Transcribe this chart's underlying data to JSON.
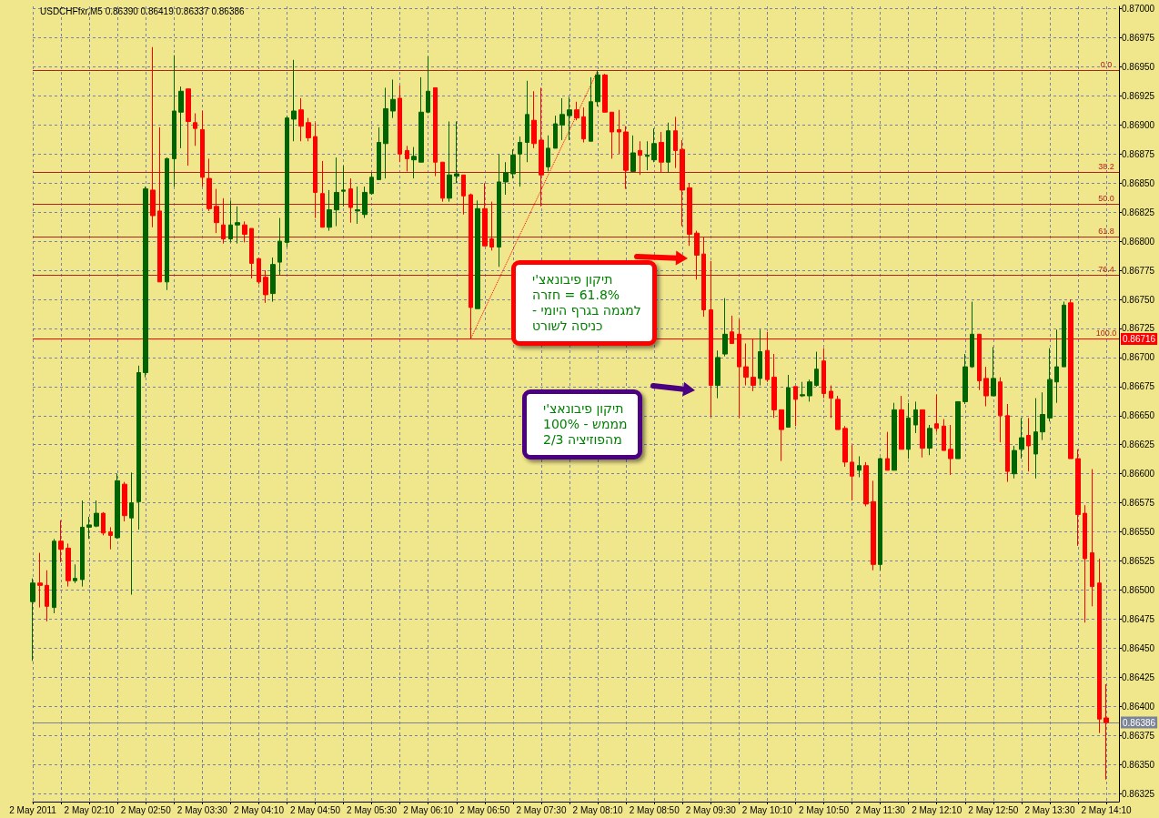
{
  "chart_data": {
    "type": "candlestick",
    "title": "USDCHFfxr,M5 0.86390 0.86419 0.86337 0.86386",
    "x": [
      "2011-05-02T01:30",
      "2011-05-02T01:35",
      "2011-05-02T01:40",
      "2011-05-02T01:45",
      "2011-05-02T01:50",
      "2011-05-02T01:55",
      "2011-05-02T02:00",
      "2011-05-02T02:05",
      "2011-05-02T02:10",
      "2011-05-02T02:15",
      "2011-05-02T02:20",
      "2011-05-02T02:25",
      "2011-05-02T02:30",
      "2011-05-02T02:35",
      "2011-05-02T02:40",
      "2011-05-02T02:45",
      "2011-05-02T02:50",
      "2011-05-02T02:55",
      "2011-05-02T03:00",
      "2011-05-02T03:05",
      "2011-05-02T03:10",
      "2011-05-02T03:15",
      "2011-05-02T03:20",
      "2011-05-02T03:25",
      "2011-05-02T03:30",
      "2011-05-02T03:35",
      "2011-05-02T03:40",
      "2011-05-02T03:45",
      "2011-05-02T03:50",
      "2011-05-02T03:55",
      "2011-05-02T04:00",
      "2011-05-02T04:05",
      "2011-05-02T04:10",
      "2011-05-02T04:15",
      "2011-05-02T04:20",
      "2011-05-02T04:25",
      "2011-05-02T04:30",
      "2011-05-02T04:35",
      "2011-05-02T04:40",
      "2011-05-02T04:45",
      "2011-05-02T04:50",
      "2011-05-02T04:55",
      "2011-05-02T05:00",
      "2011-05-02T05:05",
      "2011-05-02T05:10",
      "2011-05-02T05:15",
      "2011-05-02T05:20",
      "2011-05-02T05:25",
      "2011-05-02T05:30",
      "2011-05-02T05:35",
      "2011-05-02T05:40",
      "2011-05-02T05:45",
      "2011-05-02T05:50",
      "2011-05-02T05:55",
      "2011-05-02T06:00",
      "2011-05-02T06:05",
      "2011-05-02T06:10",
      "2011-05-02T06:15",
      "2011-05-02T06:20",
      "2011-05-02T06:25",
      "2011-05-02T06:30",
      "2011-05-02T06:35",
      "2011-05-02T06:40",
      "2011-05-02T06:45",
      "2011-05-02T06:50",
      "2011-05-02T06:55",
      "2011-05-02T07:00",
      "2011-05-02T07:05",
      "2011-05-02T07:10",
      "2011-05-02T07:15",
      "2011-05-02T07:20",
      "2011-05-02T07:25",
      "2011-05-02T07:30",
      "2011-05-02T07:35",
      "2011-05-02T07:40",
      "2011-05-02T07:45",
      "2011-05-02T07:50",
      "2011-05-02T07:55",
      "2011-05-02T08:00",
      "2011-05-02T08:05",
      "2011-05-02T08:10",
      "2011-05-02T08:15",
      "2011-05-02T08:20",
      "2011-05-02T08:25",
      "2011-05-02T08:30",
      "2011-05-02T08:35",
      "2011-05-02T08:40",
      "2011-05-02T08:45",
      "2011-05-02T08:50",
      "2011-05-02T08:55",
      "2011-05-02T09:00",
      "2011-05-02T09:05",
      "2011-05-02T09:10",
      "2011-05-02T09:15",
      "2011-05-02T09:20",
      "2011-05-02T09:25",
      "2011-05-02T09:30",
      "2011-05-02T09:35",
      "2011-05-02T09:40",
      "2011-05-02T09:45",
      "2011-05-02T09:50",
      "2011-05-02T09:55",
      "2011-05-02T10:00",
      "2011-05-02T10:05",
      "2011-05-02T10:10",
      "2011-05-02T10:15",
      "2011-05-02T10:20",
      "2011-05-02T10:25",
      "2011-05-02T10:30",
      "2011-05-02T10:35",
      "2011-05-02T10:40",
      "2011-05-02T10:45",
      "2011-05-02T10:50",
      "2011-05-02T10:55",
      "2011-05-02T11:00",
      "2011-05-02T11:05",
      "2011-05-02T11:10",
      "2011-05-02T11:15",
      "2011-05-02T11:20",
      "2011-05-02T11:25",
      "2011-05-02T11:30",
      "2011-05-02T11:35",
      "2011-05-02T11:40",
      "2011-05-02T11:45",
      "2011-05-02T11:50",
      "2011-05-02T11:55",
      "2011-05-02T12:00",
      "2011-05-02T12:05",
      "2011-05-02T12:10",
      "2011-05-02T12:15",
      "2011-05-02T12:20",
      "2011-05-02T12:25",
      "2011-05-02T12:30",
      "2011-05-02T12:35",
      "2011-05-02T12:40",
      "2011-05-02T12:45",
      "2011-05-02T12:50",
      "2011-05-02T12:55",
      "2011-05-02T13:00",
      "2011-05-02T13:05",
      "2011-05-02T13:10",
      "2011-05-02T13:15",
      "2011-05-02T13:20",
      "2011-05-02T13:25",
      "2011-05-02T13:30",
      "2011-05-02T13:35",
      "2011-05-02T13:40",
      "2011-05-02T13:45",
      "2011-05-02T13:50",
      "2011-05-02T13:55",
      "2011-05-02T14:00",
      "2011-05-02T14:05",
      "2011-05-02T14:10"
    ],
    "ohlc": [
      [
        0.8649,
        0.8651,
        0.86439,
        0.86506
      ],
      [
        0.86506,
        0.86532,
        0.86485,
        0.86504
      ],
      [
        0.86504,
        0.86517,
        0.86473,
        0.86486
      ],
      [
        0.86485,
        0.86544,
        0.8648,
        0.86542
      ],
      [
        0.86542,
        0.8656,
        0.86524,
        0.86535
      ],
      [
        0.86536,
        0.8654,
        0.86503,
        0.86508
      ],
      [
        0.86508,
        0.86522,
        0.86506,
        0.8651
      ],
      [
        0.86509,
        0.86577,
        0.86503,
        0.86554
      ],
      [
        0.86554,
        0.86563,
        0.86544,
        0.86556
      ],
      [
        0.86555,
        0.86577,
        0.86554,
        0.86566
      ],
      [
        0.86566,
        0.86567,
        0.86547,
        0.86549
      ],
      [
        0.8655,
        0.86554,
        0.86535,
        0.86547
      ],
      [
        0.86545,
        0.866,
        0.86544,
        0.86594
      ],
      [
        0.86591,
        0.86593,
        0.86559,
        0.86564
      ],
      [
        0.86562,
        0.86601,
        0.86496,
        0.86575
      ],
      [
        0.86576,
        0.86693,
        0.86552,
        0.86687
      ],
      [
        0.86687,
        0.86847,
        0.86683,
        0.86845
      ],
      [
        0.86844,
        0.86967,
        0.86812,
        0.86822
      ],
      [
        0.86826,
        0.86898,
        0.86765,
        0.86765
      ],
      [
        0.86765,
        0.86872,
        0.86758,
        0.86871
      ],
      [
        0.86871,
        0.8696,
        0.86847,
        0.86912
      ],
      [
        0.86911,
        0.86933,
        0.8688,
        0.86929
      ],
      [
        0.86931,
        0.86931,
        0.86865,
        0.86903
      ],
      [
        0.86902,
        0.8691,
        0.86882,
        0.86897
      ],
      [
        0.86896,
        0.86912,
        0.86847,
        0.86855
      ],
      [
        0.86854,
        0.86871,
        0.86826,
        0.86828
      ],
      [
        0.8683,
        0.86845,
        0.86807,
        0.86816
      ],
      [
        0.86814,
        0.86837,
        0.86798,
        0.86802
      ],
      [
        0.86802,
        0.86835,
        0.86799,
        0.86814
      ],
      [
        0.86814,
        0.8683,
        0.86798,
        0.86816
      ],
      [
        0.86814,
        0.86817,
        0.86799,
        0.86806
      ],
      [
        0.86811,
        0.86811,
        0.86768,
        0.86781
      ],
      [
        0.86785,
        0.86786,
        0.86763,
        0.86765
      ],
      [
        0.86769,
        0.86775,
        0.86747,
        0.86754
      ],
      [
        0.86755,
        0.86786,
        0.86748,
        0.8678
      ],
      [
        0.86782,
        0.8682,
        0.86771,
        0.868
      ],
      [
        0.86799,
        0.86908,
        0.86795,
        0.86906
      ],
      [
        0.86905,
        0.86956,
        0.86886,
        0.86912
      ],
      [
        0.86913,
        0.86923,
        0.86886,
        0.86899
      ],
      [
        0.86902,
        0.86906,
        0.86886,
        0.86889
      ],
      [
        0.8689,
        0.86902,
        0.8682,
        0.86842
      ],
      [
        0.86841,
        0.86869,
        0.86812,
        0.86812
      ],
      [
        0.86812,
        0.86844,
        0.86809,
        0.86827
      ],
      [
        0.86827,
        0.86872,
        0.86813,
        0.86842
      ],
      [
        0.86843,
        0.86865,
        0.8683,
        0.86844
      ],
      [
        0.86845,
        0.86854,
        0.86816,
        0.86829
      ],
      [
        0.86826,
        0.86847,
        0.86815,
        0.86827
      ],
      [
        0.86823,
        0.86847,
        0.8682,
        0.86842
      ],
      [
        0.86841,
        0.86859,
        0.8684,
        0.86855
      ],
      [
        0.86853,
        0.86898,
        0.86853,
        0.86885
      ],
      [
        0.86884,
        0.86932,
        0.86854,
        0.86914
      ],
      [
        0.86912,
        0.86939,
        0.86906,
        0.86922
      ],
      [
        0.86923,
        0.86934,
        0.86868,
        0.86875
      ],
      [
        0.86878,
        0.86882,
        0.8686,
        0.86871
      ],
      [
        0.8687,
        0.86881,
        0.86854,
        0.86873
      ],
      [
        0.86868,
        0.86941,
        0.86868,
        0.86911
      ],
      [
        0.86911,
        0.86959,
        0.8691,
        0.86929
      ],
      [
        0.86932,
        0.86932,
        0.86856,
        0.86868
      ],
      [
        0.86868,
        0.86868,
        0.86834,
        0.86837
      ],
      [
        0.86837,
        0.86903,
        0.86834,
        0.86857
      ],
      [
        0.86856,
        0.86903,
        0.8685,
        0.86858
      ],
      [
        0.86857,
        0.86857,
        0.86823,
        0.86839
      ],
      [
        0.8684,
        0.86841,
        0.86716,
        0.86743
      ],
      [
        0.86742,
        0.86835,
        0.86742,
        0.86828
      ],
      [
        0.86828,
        0.8685,
        0.86796,
        0.86796
      ],
      [
        0.86802,
        0.86834,
        0.86792,
        0.86795
      ],
      [
        0.86795,
        0.86875,
        0.86778,
        0.86851
      ],
      [
        0.86851,
        0.86868,
        0.8684,
        0.86859
      ],
      [
        0.86858,
        0.86879,
        0.86854,
        0.86874
      ],
      [
        0.86875,
        0.8689,
        0.86847,
        0.86885
      ],
      [
        0.86885,
        0.86938,
        0.86868,
        0.86909
      ],
      [
        0.86904,
        0.86929,
        0.8688,
        0.86884
      ],
      [
        0.86887,
        0.86932,
        0.8683,
        0.86857
      ],
      [
        0.86864,
        0.86891,
        0.8686,
        0.8688
      ],
      [
        0.8688,
        0.86908,
        0.8688,
        0.86901
      ],
      [
        0.869,
        0.86923,
        0.86887,
        0.86909
      ],
      [
        0.86908,
        0.86924,
        0.86887,
        0.86913
      ],
      [
        0.86913,
        0.8692,
        0.86904,
        0.86906
      ],
      [
        0.86907,
        0.86915,
        0.86885,
        0.86888
      ],
      [
        0.86886,
        0.86941,
        0.86886,
        0.8692
      ],
      [
        0.8692,
        0.86947,
        0.86916,
        0.86943
      ],
      [
        0.86943,
        0.86944,
        0.86911,
        0.86911
      ],
      [
        0.86911,
        0.86911,
        0.86871,
        0.86894
      ],
      [
        0.86896,
        0.86913,
        0.86875,
        0.86894
      ],
      [
        0.86894,
        0.86899,
        0.86845,
        0.86861
      ],
      [
        0.8686,
        0.86891,
        0.8686,
        0.86876
      ],
      [
        0.86878,
        0.86886,
        0.86857,
        0.86874
      ],
      [
        0.86873,
        0.86886,
        0.86861,
        0.86874
      ],
      [
        0.8687,
        0.86897,
        0.86868,
        0.86884
      ],
      [
        0.86885,
        0.86894,
        0.86859,
        0.86868
      ],
      [
        0.86868,
        0.86902,
        0.86859,
        0.86895
      ],
      [
        0.86895,
        0.86907,
        0.86863,
        0.86878
      ],
      [
        0.86879,
        0.86887,
        0.86813,
        0.86844
      ],
      [
        0.86846,
        0.8685,
        0.86796,
        0.86806
      ],
      [
        0.86807,
        0.86809,
        0.86767,
        0.86788
      ],
      [
        0.86789,
        0.86804,
        0.86735,
        0.86741
      ],
      [
        0.86741,
        0.86783,
        0.86649,
        0.86676
      ],
      [
        0.86676,
        0.86706,
        0.86665,
        0.867
      ],
      [
        0.86703,
        0.86751,
        0.86701,
        0.8672
      ],
      [
        0.86722,
        0.86736,
        0.86712,
        0.86712
      ],
      [
        0.8672,
        0.86733,
        0.86648,
        0.86692
      ],
      [
        0.86692,
        0.86712,
        0.86676,
        0.86683
      ],
      [
        0.86683,
        0.86716,
        0.86671,
        0.86676
      ],
      [
        0.86682,
        0.86724,
        0.86676,
        0.86705
      ],
      [
        0.86706,
        0.86722,
        0.86679,
        0.86681
      ],
      [
        0.86683,
        0.86703,
        0.86648,
        0.86655
      ],
      [
        0.86655,
        0.86655,
        0.86611,
        0.86638
      ],
      [
        0.8664,
        0.86685,
        0.8664,
        0.86674
      ],
      [
        0.86675,
        0.86675,
        0.86641,
        0.86664
      ],
      [
        0.86667,
        0.86679,
        0.86666,
        0.86668
      ],
      [
        0.86667,
        0.86681,
        0.86662,
        0.86679
      ],
      [
        0.86676,
        0.86705,
        0.86675,
        0.8669
      ],
      [
        0.86697,
        0.86708,
        0.86665,
        0.86669
      ],
      [
        0.86671,
        0.86676,
        0.86648,
        0.86665
      ],
      [
        0.86664,
        0.86667,
        0.86638,
        0.86638
      ],
      [
        0.86639,
        0.86641,
        0.86606,
        0.8661
      ],
      [
        0.8661,
        0.86625,
        0.86577,
        0.86598
      ],
      [
        0.86603,
        0.86615,
        0.86597,
        0.86607
      ],
      [
        0.86607,
        0.8661,
        0.86572,
        0.86574
      ],
      [
        0.86576,
        0.86594,
        0.86517,
        0.86522
      ],
      [
        0.86522,
        0.86614,
        0.86517,
        0.86613
      ],
      [
        0.86613,
        0.86636,
        0.86603,
        0.86603
      ],
      [
        0.86603,
        0.86661,
        0.86603,
        0.86655
      ],
      [
        0.86655,
        0.86667,
        0.86621,
        0.86621
      ],
      [
        0.86621,
        0.86661,
        0.86613,
        0.86648
      ],
      [
        0.86642,
        0.86662,
        0.86635,
        0.86655
      ],
      [
        0.86655,
        0.86655,
        0.86614,
        0.86622
      ],
      [
        0.86622,
        0.86642,
        0.86616,
        0.86639
      ],
      [
        0.86643,
        0.86668,
        0.86636,
        0.86639
      ],
      [
        0.86641,
        0.86647,
        0.8662,
        0.8662
      ],
      [
        0.86621,
        0.86642,
        0.86599,
        0.86613
      ],
      [
        0.86613,
        0.86662,
        0.86613,
        0.86662
      ],
      [
        0.86662,
        0.86703,
        0.8666,
        0.86692
      ],
      [
        0.86692,
        0.86748,
        0.86691,
        0.8672
      ],
      [
        0.8672,
        0.8672,
        0.86672,
        0.8668
      ],
      [
        0.86682,
        0.86692,
        0.86658,
        0.86667
      ],
      [
        0.86667,
        0.86709,
        0.86667,
        0.86682
      ],
      [
        0.86679,
        0.86683,
        0.86627,
        0.8665
      ],
      [
        0.8665,
        0.8666,
        0.86593,
        0.86602
      ],
      [
        0.866,
        0.86624,
        0.86596,
        0.8662
      ],
      [
        0.86621,
        0.86648,
        0.86613,
        0.86631
      ],
      [
        0.86633,
        0.86648,
        0.86602,
        0.86624
      ],
      [
        0.86617,
        0.86665,
        0.86596,
        0.86636
      ],
      [
        0.86636,
        0.8667,
        0.86629,
        0.86651
      ],
      [
        0.86648,
        0.86708,
        0.86645,
        0.86681
      ],
      [
        0.86679,
        0.86724,
        0.86661,
        0.86692
      ],
      [
        0.86692,
        0.86748,
        0.86692,
        0.86745
      ],
      [
        0.86747,
        0.8675,
        0.86613,
        0.86613
      ],
      [
        0.86613,
        0.86621,
        0.86538,
        0.86565
      ],
      [
        0.86566,
        0.86573,
        0.86472,
        0.86527
      ],
      [
        0.86532,
        0.86604,
        0.86486,
        0.86503
      ],
      [
        0.86506,
        0.86527,
        0.86377,
        0.86389
      ],
      [
        0.8639,
        0.86419,
        0.86337,
        0.86386
      ]
    ],
    "colors": [
      "#006400",
      "#ff0000",
      "#ff0000",
      "#006400",
      "#ff0000",
      "#ff0000",
      "#006400",
      "#006400",
      "#006400",
      "#006400",
      "#ff0000",
      "#ff0000",
      "#006400",
      "#ff0000",
      "#006400",
      "#006400",
      "#006400",
      "#ff0000",
      "#ff0000",
      "#006400",
      "#006400",
      "#006400",
      "#ff0000",
      "#ff0000",
      "#ff0000",
      "#ff0000",
      "#ff0000",
      "#ff0000",
      "#006400",
      "#006400",
      "#ff0000",
      "#ff0000",
      "#ff0000",
      "#ff0000",
      "#006400",
      "#006400",
      "#006400",
      "#006400",
      "#ff0000",
      "#ff0000",
      "#ff0000",
      "#ff0000",
      "#006400",
      "#006400",
      "#006400",
      "#ff0000",
      "#006400",
      "#006400",
      "#006400",
      "#006400",
      "#006400",
      "#006400",
      "#ff0000",
      "#ff0000",
      "#006400",
      "#006400",
      "#006400",
      "#ff0000",
      "#ff0000",
      "#006400",
      "#006400",
      "#ff0000",
      "#ff0000",
      "#006400",
      "#ff0000",
      "#ff0000",
      "#006400",
      "#006400",
      "#006400",
      "#006400",
      "#006400",
      "#ff0000",
      "#ff0000",
      "#006400",
      "#006400",
      "#006400",
      "#006400",
      "#ff0000",
      "#ff0000",
      "#006400",
      "#006400",
      "#ff0000",
      "#ff0000",
      "#ff0000",
      "#ff0000",
      "#006400",
      "#ff0000",
      "#006400",
      "#006400",
      "#ff0000",
      "#006400",
      "#ff0000",
      "#ff0000",
      "#ff0000",
      "#ff0000",
      "#ff0000",
      "#ff0000",
      "#006400",
      "#006400",
      "#ff0000",
      "#ff0000",
      "#ff0000",
      "#ff0000",
      "#006400",
      "#ff0000",
      "#ff0000",
      "#ff0000",
      "#006400",
      "#ff0000",
      "#006400",
      "#006400",
      "#006400",
      "#ff0000",
      "#ff0000",
      "#ff0000",
      "#ff0000",
      "#ff0000",
      "#006400",
      "#ff0000",
      "#ff0000",
      "#006400",
      "#ff0000",
      "#006400",
      "#ff0000",
      "#006400",
      "#006400",
      "#ff0000",
      "#006400",
      "#ff0000",
      "#ff0000",
      "#ff0000",
      "#006400",
      "#006400",
      "#006400",
      "#ff0000",
      "#ff0000",
      "#006400",
      "#ff0000",
      "#ff0000",
      "#006400",
      "#006400",
      "#ff0000",
      "#006400",
      "#006400",
      "#006400",
      "#006400",
      "#006400",
      "#ff0000",
      "#ff0000",
      "#ff0000",
      "#ff0000",
      "#ff0000",
      "#ff0000"
    ],
    "series": [
      {
        "type": "line",
        "x": [
          "2011-05-02T06:40",
          "2011-05-02T08:10"
        ],
        "values": [
          0.86716,
          0.86947
        ],
        "color": "#ff0000",
        "line_style": "dotted",
        "marker": "none"
      }
    ],
    "xlim": [
      "2011-05-02T01:30",
      "2011-05-02T14:19"
    ],
    "xticks": [
      {
        "value": "2011-05-02T01:30",
        "label": "2 May 2011"
      },
      {
        "value": "2011-05-02T01:50",
        "label": null
      },
      {
        "value": "2011-05-02T02:10",
        "label": "2 May 02:10"
      },
      {
        "value": "2011-05-02T02:30",
        "label": null
      },
      {
        "value": "2011-05-02T02:50",
        "label": "2 May 02:50"
      },
      {
        "value": "2011-05-02T03:10",
        "label": null
      },
      {
        "value": "2011-05-02T03:30",
        "label": "2 May 03:30"
      },
      {
        "value": "2011-05-02T03:50",
        "label": null
      },
      {
        "value": "2011-05-02T04:10",
        "label": "2 May 04:10"
      },
      {
        "value": "2011-05-02T04:30",
        "label": null
      },
      {
        "value": "2011-05-02T04:50",
        "label": "2 May 04:50"
      },
      {
        "value": "2011-05-02T05:10",
        "label": null
      },
      {
        "value": "2011-05-02T05:30",
        "label": "2 May 05:30"
      },
      {
        "value": "2011-05-02T05:50",
        "label": null
      },
      {
        "value": "2011-05-02T06:10",
        "label": "2 May 06:10"
      },
      {
        "value": "2011-05-02T06:30",
        "label": null
      },
      {
        "value": "2011-05-02T06:50",
        "label": "2 May 06:50"
      },
      {
        "value": "2011-05-02T07:10",
        "label": null
      },
      {
        "value": "2011-05-02T07:30",
        "label": "2 May 07:30"
      },
      {
        "value": "2011-05-02T07:50",
        "label": null
      },
      {
        "value": "2011-05-02T08:10",
        "label": "2 May 08:10"
      },
      {
        "value": "2011-05-02T08:30",
        "label": null
      },
      {
        "value": "2011-05-02T08:50",
        "label": "2 May 08:50"
      },
      {
        "value": "2011-05-02T09:10",
        "label": null
      },
      {
        "value": "2011-05-02T09:30",
        "label": "2 May 09:30"
      },
      {
        "value": "2011-05-02T09:50",
        "label": null
      },
      {
        "value": "2011-05-02T10:10",
        "label": "2 May 10:10"
      },
      {
        "value": "2011-05-02T10:30",
        "label": null
      },
      {
        "value": "2011-05-02T10:50",
        "label": "2 May 10:50"
      },
      {
        "value": "2011-05-02T11:10",
        "label": null
      },
      {
        "value": "2011-05-02T11:30",
        "label": "2 May 11:30"
      },
      {
        "value": "2011-05-02T11:50",
        "label": null
      },
      {
        "value": "2011-05-02T12:10",
        "label": "2 May 12:10"
      },
      {
        "value": "2011-05-02T12:30",
        "label": null
      },
      {
        "value": "2011-05-02T12:50",
        "label": "2 May 12:50"
      },
      {
        "value": "2011-05-02T13:10",
        "label": null
      },
      {
        "value": "2011-05-02T13:30",
        "label": "2 May 13:30"
      },
      {
        "value": "2011-05-02T13:50",
        "label": null
      },
      {
        "value": "2011-05-02T14:10",
        "label": "2 May 14:10"
      }
    ],
    "ylim": [
      0.86318,
      0.87002
    ],
    "yticks": [
      {
        "value": 0.86325,
        "label": "0.86325"
      },
      {
        "value": 0.8635,
        "label": "0.86350"
      },
      {
        "value": 0.86375,
        "label": "0.86375"
      },
      {
        "value": 0.864,
        "label": "0.86400"
      },
      {
        "value": 0.86425,
        "label": "0.86425"
      },
      {
        "value": 0.8645,
        "label": "0.86450"
      },
      {
        "value": 0.86475,
        "label": "0.86475"
      },
      {
        "value": 0.865,
        "label": "0.86500"
      },
      {
        "value": 0.86525,
        "label": "0.86525"
      },
      {
        "value": 0.8655,
        "label": "0.86550"
      },
      {
        "value": 0.86575,
        "label": "0.86575"
      },
      {
        "value": 0.866,
        "label": "0.86600"
      },
      {
        "value": 0.86625,
        "label": "0.86625"
      },
      {
        "value": 0.8665,
        "label": "0.86650"
      },
      {
        "value": 0.86675,
        "label": "0.86675"
      },
      {
        "value": 0.867,
        "label": "0.86700"
      },
      {
        "value": 0.86725,
        "label": "0.86725"
      },
      {
        "value": 0.8675,
        "label": "0.86750"
      },
      {
        "value": 0.86775,
        "label": "0.86775"
      },
      {
        "value": 0.868,
        "label": "0.86800"
      },
      {
        "value": 0.86825,
        "label": "0.86825"
      },
      {
        "value": 0.8685,
        "label": "0.86850"
      },
      {
        "value": 0.86875,
        "label": "0.86875"
      },
      {
        "value": 0.869,
        "label": "0.86900"
      },
      {
        "value": 0.86925,
        "label": "0.86925"
      },
      {
        "value": 0.8695,
        "label": "0.86950"
      },
      {
        "value": 0.86975,
        "label": "0.86975"
      },
      {
        "value": 0.87,
        "label": "0.87000"
      }
    ],
    "ref_lines": [
      {
        "axis": "y",
        "value": 0.86947,
        "color": "#b22222"
      },
      {
        "axis": "y",
        "value": 0.86859,
        "color": "#b22222"
      },
      {
        "axis": "y",
        "value": 0.86832,
        "color": "#b22222"
      },
      {
        "axis": "y",
        "value": 0.86804,
        "color": "#b22222"
      },
      {
        "axis": "y",
        "value": 0.86771,
        "color": "#b22222"
      },
      {
        "axis": "y",
        "value": 0.86716,
        "label": "0.86716",
        "color": "#ff0000"
      },
      {
        "axis": "y",
        "value": 0.86386,
        "label": "0.86386",
        "color": "#7a8496"
      }
    ],
    "annotations": [
      "תיקון פיבונאצ'י\n61.8% = חזרה\nלמגמה בגרף היומי -\nכניסה לשורט",
      "תיקון פיבונאצ'י\nמממש - 100%\nמהפוזיציה 2/3",
      {
        "text": "0.0",
        "x": "2011-05-02T14:10",
        "y": 0.86947
      },
      {
        "text": "38.2",
        "x": "2011-05-02T14:10",
        "y": 0.86859
      },
      {
        "text": "50.0",
        "x": "2011-05-02T14:10",
        "y": 0.86832
      },
      {
        "text": "61.8",
        "x": "2011-05-02T14:10",
        "y": 0.86804
      },
      {
        "text": "76.4",
        "x": "2011-05-02T14:10",
        "y": 0.86771
      },
      {
        "text": "100.0",
        "x": "2011-05-02T14:10",
        "y": 0.86716
      }
    ],
    "grid": true
  }
}
